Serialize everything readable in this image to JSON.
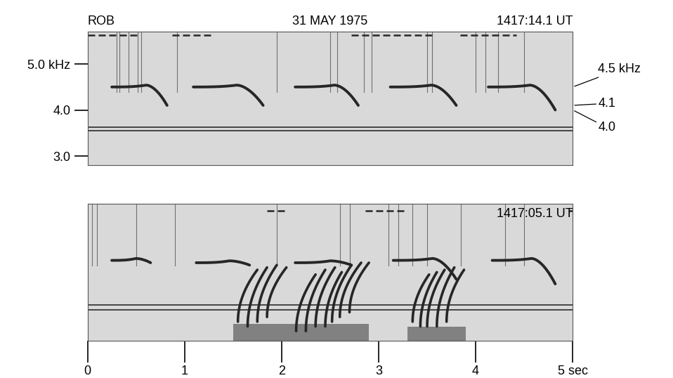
{
  "chart_data": [
    {
      "type": "spectrogram",
      "station": "ROB",
      "date": "31 MAY 1975",
      "time_label": "1417:14.1 UT",
      "xlim": [
        0,
        5
      ],
      "ylim": [
        2.8,
        5.7
      ],
      "yticks": [
        {
          "value": 3.0,
          "label": "3.0"
        },
        {
          "value": 4.0,
          "label": "4.0"
        },
        {
          "value": 5.0,
          "label": "5.0 kHz"
        }
      ],
      "tick_labels": "y",
      "right_labels": [
        {
          "value": 4.5,
          "label": "4.5 kHz"
        },
        {
          "value": 4.1,
          "label": "4.1"
        },
        {
          "value": 4.0,
          "label": "4.0"
        }
      ],
      "pulses": [
        {
          "start": 0.25,
          "end": 0.82,
          "f_start": 4.5,
          "f_end": 4.1
        },
        {
          "start": 1.09,
          "end": 1.81,
          "f_start": 4.5,
          "f_end": 4.1
        },
        {
          "start": 2.14,
          "end": 2.79,
          "f_start": 4.5,
          "f_end": 4.1
        },
        {
          "start": 3.12,
          "end": 3.8,
          "f_start": 4.5,
          "f_end": 4.1
        },
        {
          "start": 4.13,
          "end": 4.82,
          "f_start": 4.5,
          "f_end": 4.0
        }
      ],
      "hum_lines": [
        3.55,
        3.62
      ],
      "time_code": {
        "f": 5.62,
        "segments": [
          [
            0.0,
            0.54
          ],
          [
            0.87,
            1.27
          ],
          [
            2.72,
            3.55
          ],
          [
            3.84,
            4.42
          ]
        ]
      },
      "sferics": [
        0.3,
        0.33,
        0.42,
        0.52,
        0.55,
        0.92,
        1.95,
        2.5,
        2.57,
        2.85,
        2.93,
        3.5,
        3.55,
        4.0,
        4.1,
        4.23,
        4.5
      ],
      "color": "#262626"
    },
    {
      "type": "spectrogram",
      "time_label": "1417:05.1 UT",
      "xlim": [
        0,
        5
      ],
      "ylim": [
        2.8,
        5.7
      ],
      "xticks": [
        0,
        1,
        2,
        3,
        4,
        {
          "value": 5,
          "label": "5 sec"
        }
      ],
      "tick_labels": "x",
      "pulses": [
        {
          "start": 0.25,
          "end": 0.65,
          "f_start": 4.5,
          "f_end": 4.45
        },
        {
          "start": 1.12,
          "end": 1.67,
          "f_start": 4.45,
          "f_end": 4.4
        },
        {
          "start": 2.14,
          "end": 2.72,
          "f_start": 4.45,
          "f_end": 4.4
        },
        {
          "start": 3.15,
          "end": 3.8,
          "f_start": 4.5,
          "f_end": 4.1
        },
        {
          "start": 4.17,
          "end": 4.82,
          "f_start": 4.5,
          "f_end": 4.0
        }
      ],
      "emissions": [
        {
          "t0": 1.55,
          "f0": 3.2,
          "t1": 1.75,
          "f1": 4.3
        },
        {
          "t0": 1.65,
          "f0": 3.1,
          "t1": 1.85,
          "f1": 4.35
        },
        {
          "t0": 1.75,
          "f0": 3.2,
          "t1": 1.95,
          "f1": 4.4
        },
        {
          "t0": 1.85,
          "f0": 3.3,
          "t1": 2.05,
          "f1": 4.35
        },
        {
          "t0": 2.15,
          "f0": 3.0,
          "t1": 2.35,
          "f1": 4.2
        },
        {
          "t0": 2.25,
          "f0": 3.0,
          "t1": 2.45,
          "f1": 4.3
        },
        {
          "t0": 2.35,
          "f0": 3.1,
          "t1": 2.55,
          "f1": 4.35
        },
        {
          "t0": 2.45,
          "f0": 3.1,
          "t1": 2.62,
          "f1": 4.25
        },
        {
          "t0": 2.52,
          "f0": 3.2,
          "t1": 2.72,
          "f1": 4.4
        },
        {
          "t0": 2.6,
          "f0": 3.3,
          "t1": 2.82,
          "f1": 4.45
        },
        {
          "t0": 2.7,
          "f0": 3.4,
          "t1": 2.9,
          "f1": 4.45
        },
        {
          "t0": 3.35,
          "f0": 3.2,
          "t1": 3.52,
          "f1": 4.2
        },
        {
          "t0": 3.43,
          "f0": 3.1,
          "t1": 3.6,
          "f1": 4.25
        },
        {
          "t0": 3.5,
          "f0": 3.1,
          "t1": 3.68,
          "f1": 4.3
        },
        {
          "t0": 3.6,
          "f0": 3.1,
          "t1": 3.78,
          "f1": 4.35
        },
        {
          "t0": 3.7,
          "f0": 3.2,
          "t1": 3.88,
          "f1": 4.3
        }
      ],
      "noise": [
        {
          "t0": 1.5,
          "t1": 2.9,
          "f0": 2.8,
          "f1": 3.15
        },
        {
          "t0": 3.3,
          "t1": 3.9,
          "f0": 2.8,
          "f1": 3.1
        }
      ],
      "hum_lines": [
        3.45,
        3.55
      ],
      "time_code": {
        "f": 5.55,
        "segments": [
          [
            1.85,
            2.07
          ],
          [
            2.86,
            3.26
          ],
          [
            4.96,
            5.0
          ]
        ]
      },
      "sferics": [
        0.05,
        0.1,
        0.5,
        0.9,
        1.95,
        2.6,
        2.7,
        3.1,
        3.2,
        3.35,
        3.5,
        3.85,
        4.3,
        4.5
      ],
      "color": "#262626"
    }
  ]
}
